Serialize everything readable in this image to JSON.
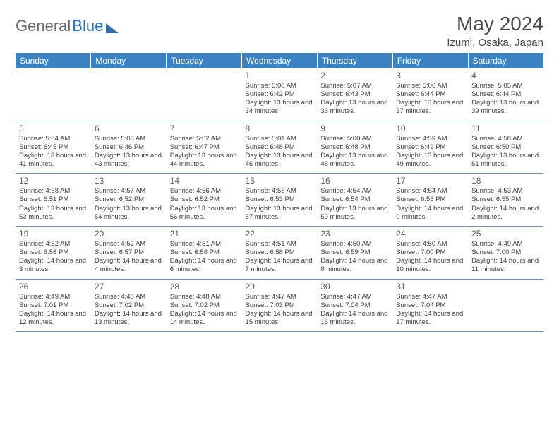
{
  "brand": {
    "part1": "General",
    "part2": "Blue"
  },
  "title": "May 2024",
  "location": "Izumi, Osaka, Japan",
  "style": {
    "header_bg": "#3b83c0",
    "header_fg": "#ffffff",
    "row_border": "#6f94b8",
    "text_color": "#3d3d3d",
    "title_color": "#4a4a4a",
    "bg": "#ffffff",
    "font_family": "Arial",
    "daynum_fontsize": 12,
    "info_fontsize": 9.5
  },
  "weekdays": [
    "Sunday",
    "Monday",
    "Tuesday",
    "Wednesday",
    "Thursday",
    "Friday",
    "Saturday"
  ],
  "weeks": [
    [
      {},
      {},
      {},
      {
        "n": "1",
        "sr": "5:08 AM",
        "ss": "6:42 PM",
        "dl": "13 hours and 34 minutes."
      },
      {
        "n": "2",
        "sr": "5:07 AM",
        "ss": "6:43 PM",
        "dl": "13 hours and 36 minutes."
      },
      {
        "n": "3",
        "sr": "5:06 AM",
        "ss": "6:44 PM",
        "dl": "13 hours and 37 minutes."
      },
      {
        "n": "4",
        "sr": "5:05 AM",
        "ss": "6:44 PM",
        "dl": "13 hours and 39 minutes."
      }
    ],
    [
      {
        "n": "5",
        "sr": "5:04 AM",
        "ss": "6:45 PM",
        "dl": "13 hours and 41 minutes."
      },
      {
        "n": "6",
        "sr": "5:03 AM",
        "ss": "6:46 PM",
        "dl": "13 hours and 43 minutes."
      },
      {
        "n": "7",
        "sr": "5:02 AM",
        "ss": "6:47 PM",
        "dl": "13 hours and 44 minutes."
      },
      {
        "n": "8",
        "sr": "5:01 AM",
        "ss": "6:48 PM",
        "dl": "13 hours and 46 minutes."
      },
      {
        "n": "9",
        "sr": "5:00 AM",
        "ss": "6:48 PM",
        "dl": "13 hours and 48 minutes."
      },
      {
        "n": "10",
        "sr": "4:59 AM",
        "ss": "6:49 PM",
        "dl": "13 hours and 49 minutes."
      },
      {
        "n": "11",
        "sr": "4:58 AM",
        "ss": "6:50 PM",
        "dl": "13 hours and 51 minutes."
      }
    ],
    [
      {
        "n": "12",
        "sr": "4:58 AM",
        "ss": "6:51 PM",
        "dl": "13 hours and 53 minutes."
      },
      {
        "n": "13",
        "sr": "4:57 AM",
        "ss": "6:52 PM",
        "dl": "13 hours and 54 minutes."
      },
      {
        "n": "14",
        "sr": "4:56 AM",
        "ss": "6:52 PM",
        "dl": "13 hours and 56 minutes."
      },
      {
        "n": "15",
        "sr": "4:55 AM",
        "ss": "6:53 PM",
        "dl": "13 hours and 57 minutes."
      },
      {
        "n": "16",
        "sr": "4:54 AM",
        "ss": "6:54 PM",
        "dl": "13 hours and 59 minutes."
      },
      {
        "n": "17",
        "sr": "4:54 AM",
        "ss": "6:55 PM",
        "dl": "14 hours and 0 minutes."
      },
      {
        "n": "18",
        "sr": "4:53 AM",
        "ss": "6:55 PM",
        "dl": "14 hours and 2 minutes."
      }
    ],
    [
      {
        "n": "19",
        "sr": "4:52 AM",
        "ss": "6:56 PM",
        "dl": "14 hours and 3 minutes."
      },
      {
        "n": "20",
        "sr": "4:52 AM",
        "ss": "6:57 PM",
        "dl": "14 hours and 4 minutes."
      },
      {
        "n": "21",
        "sr": "4:51 AM",
        "ss": "6:58 PM",
        "dl": "14 hours and 6 minutes."
      },
      {
        "n": "22",
        "sr": "4:51 AM",
        "ss": "6:58 PM",
        "dl": "14 hours and 7 minutes."
      },
      {
        "n": "23",
        "sr": "4:50 AM",
        "ss": "6:59 PM",
        "dl": "14 hours and 8 minutes."
      },
      {
        "n": "24",
        "sr": "4:50 AM",
        "ss": "7:00 PM",
        "dl": "14 hours and 10 minutes."
      },
      {
        "n": "25",
        "sr": "4:49 AM",
        "ss": "7:00 PM",
        "dl": "14 hours and 11 minutes."
      }
    ],
    [
      {
        "n": "26",
        "sr": "4:49 AM",
        "ss": "7:01 PM",
        "dl": "14 hours and 12 minutes."
      },
      {
        "n": "27",
        "sr": "4:48 AM",
        "ss": "7:02 PM",
        "dl": "14 hours and 13 minutes."
      },
      {
        "n": "28",
        "sr": "4:48 AM",
        "ss": "7:02 PM",
        "dl": "14 hours and 14 minutes."
      },
      {
        "n": "29",
        "sr": "4:47 AM",
        "ss": "7:03 PM",
        "dl": "14 hours and 15 minutes."
      },
      {
        "n": "30",
        "sr": "4:47 AM",
        "ss": "7:04 PM",
        "dl": "14 hours and 16 minutes."
      },
      {
        "n": "31",
        "sr": "4:47 AM",
        "ss": "7:04 PM",
        "dl": "14 hours and 17 minutes."
      },
      {}
    ]
  ],
  "labels": {
    "sunrise": "Sunrise:",
    "sunset": "Sunset:",
    "daylight": "Daylight:"
  }
}
